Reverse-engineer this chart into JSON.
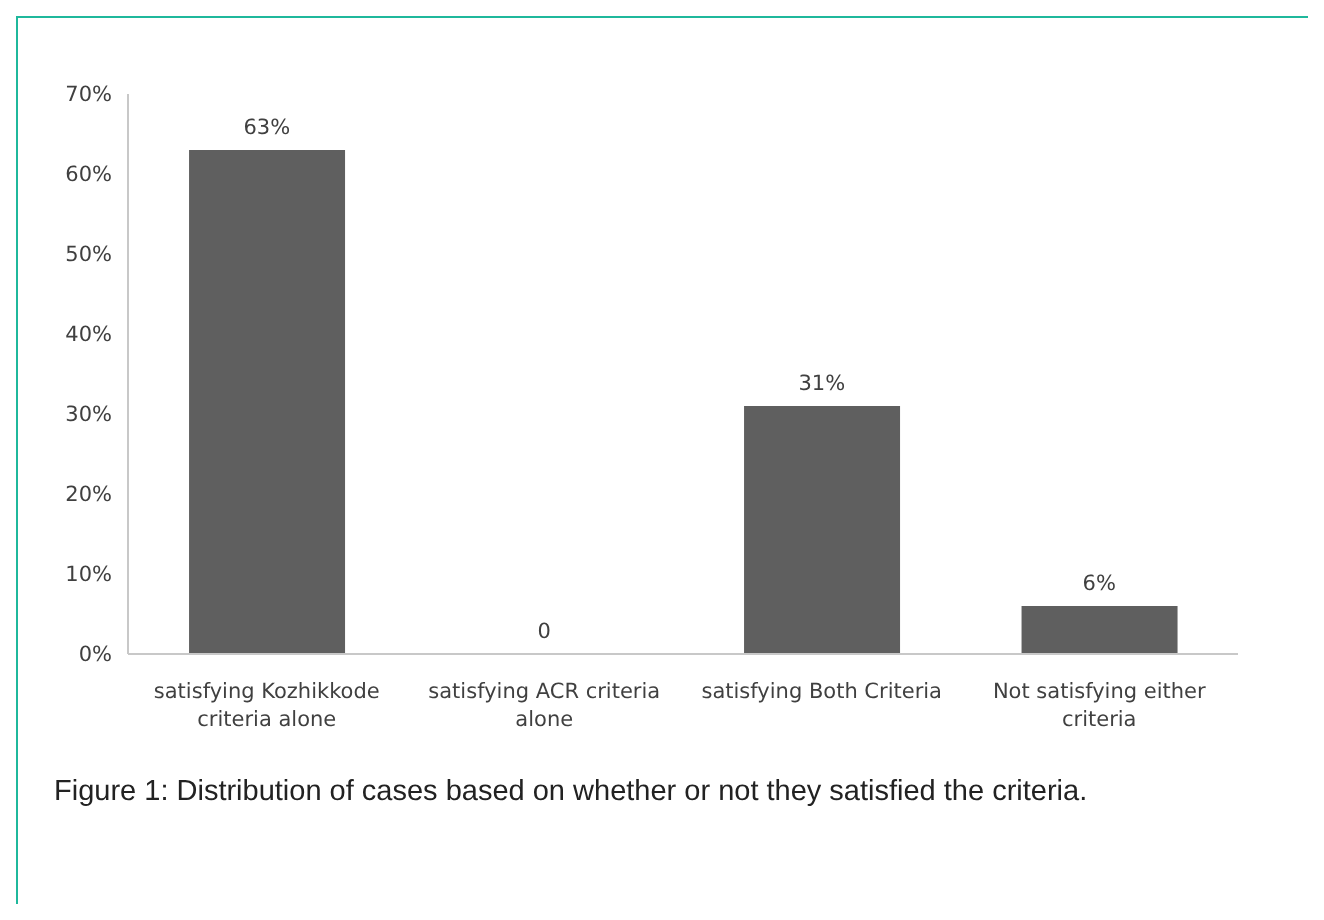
{
  "chart_data": {
    "type": "bar",
    "categories": [
      "satisfying Kozhikkode criteria alone",
      "satisfying ACR criteria alone",
      "satisfying Both Criteria",
      "Not satisfying either criteria"
    ],
    "values": [
      63,
      0,
      31,
      6
    ],
    "value_labels": [
      "63%",
      "0",
      "31%",
      "6%"
    ],
    "color": "#5f5f5f",
    "ylim": [
      0,
      70
    ],
    "yticks": [
      {
        "value": 0,
        "label": "0%"
      },
      {
        "value": 10,
        "label": "10%"
      },
      {
        "value": 20,
        "label": "20%"
      },
      {
        "value": 30,
        "label": "30%"
      },
      {
        "value": 40,
        "label": "40%"
      },
      {
        "value": 50,
        "label": "50%"
      },
      {
        "value": 60,
        "label": "60%"
      },
      {
        "value": 70,
        "label": "70%"
      }
    ],
    "annotations": [
      "Figure 1: Distribution of cases based on whether or not they satisfied the criteria."
    ]
  }
}
